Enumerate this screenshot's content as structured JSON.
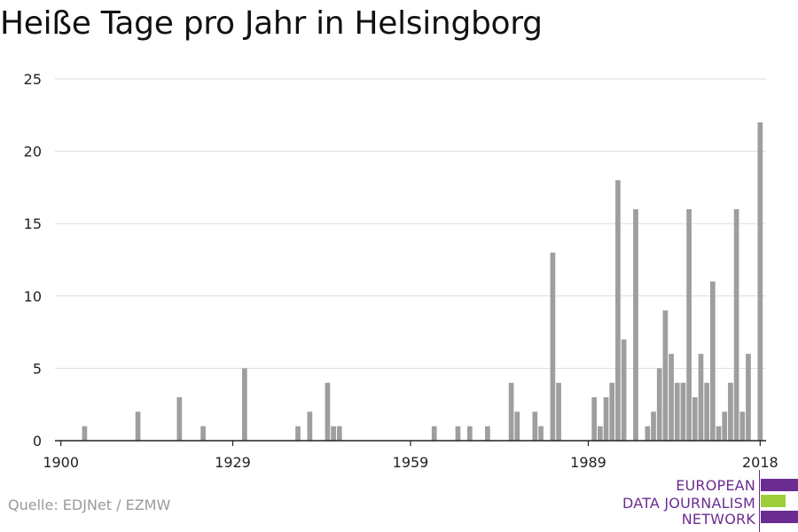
{
  "title": "Heiße Tage pro Jahr in Helsingborg",
  "source": "Quelle: EDJNet / EZMW",
  "logo": {
    "line1": "EUROPEAN",
    "line2": "DATA JOURNALISM",
    "line3": "NETWORK",
    "purple": "#6b2c91",
    "green": "#9ecf3a"
  },
  "colors": {
    "bar": "#9e9e9e",
    "grid": "#dddddd",
    "axis": "#222222",
    "text": "#222222"
  },
  "chart_data": {
    "type": "bar",
    "title": "Heiße Tage pro Jahr in Helsingborg",
    "xlabel": "",
    "ylabel": "",
    "ylim": [
      0,
      25
    ],
    "xlim": [
      1899,
      2019
    ],
    "grid": true,
    "yticks": [
      0,
      5,
      10,
      15,
      20,
      25
    ],
    "xticks": [
      1900,
      1929,
      1959,
      1989,
      2018
    ],
    "x": [
      1904,
      1913,
      1920,
      1924,
      1931,
      1940,
      1942,
      1945,
      1946,
      1947,
      1963,
      1967,
      1969,
      1972,
      1976,
      1977,
      1980,
      1981,
      1983,
      1984,
      1990,
      1991,
      1992,
      1993,
      1994,
      1995,
      1997,
      1999,
      2000,
      2001,
      2002,
      2003,
      2004,
      2005,
      2006,
      2007,
      2008,
      2009,
      2010,
      2011,
      2012,
      2013,
      2014,
      2015,
      2016,
      2018
    ],
    "values": [
      1,
      2,
      3,
      1,
      5,
      1,
      2,
      4,
      1,
      1,
      1,
      1,
      1,
      1,
      4,
      2,
      2,
      1,
      13,
      4,
      3,
      1,
      3,
      4,
      18,
      7,
      16,
      1,
      2,
      5,
      9,
      6,
      4,
      4,
      16,
      3,
      6,
      4,
      11,
      1,
      2,
      4,
      16,
      2,
      6,
      22
    ]
  }
}
